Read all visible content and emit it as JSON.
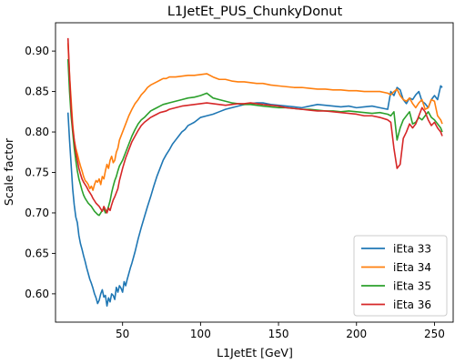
{
  "chart_data": {
    "type": "line",
    "title": "L1JetEt_PUS_ChunkyDonut",
    "xlabel": "L1JetEt [GeV]",
    "ylabel": "Scale factor",
    "xlim": [
      7,
      262
    ],
    "ylim": [
      0.565,
      0.935
    ],
    "xticks": [
      50,
      100,
      150,
      200,
      250
    ],
    "xtick_labels": [
      "50",
      "100",
      "150",
      "200",
      "250"
    ],
    "yticks": [
      0.6,
      0.65,
      0.7,
      0.75,
      0.8,
      0.85,
      0.9
    ],
    "ytick_labels": [
      "0.60",
      "0.65",
      "0.70",
      "0.75",
      "0.80",
      "0.85",
      "0.90"
    ],
    "grid": false,
    "legend_position": "lower-right",
    "series": [
      {
        "name": "iEta 33",
        "color": "#1f77b4",
        "x": [
          15,
          16,
          17,
          18,
          19,
          20,
          21,
          22,
          23,
          24,
          25,
          26,
          27,
          28,
          29,
          30,
          31,
          32,
          33,
          34,
          35,
          36,
          37,
          38,
          39,
          40,
          41,
          42,
          43,
          44,
          45,
          46,
          47,
          48,
          49,
          50,
          51,
          52,
          53,
          54,
          55,
          56,
          57,
          58,
          59,
          60,
          62,
          64,
          66,
          68,
          70,
          72,
          74,
          76,
          78,
          80,
          82,
          84,
          86,
          88,
          90,
          92,
          94,
          96,
          98,
          100,
          104,
          108,
          112,
          116,
          120,
          124,
          128,
          132,
          136,
          140,
          145,
          150,
          155,
          160,
          165,
          170,
          175,
          180,
          185,
          190,
          195,
          200,
          205,
          210,
          215,
          220,
          222,
          224,
          226,
          228,
          230,
          232,
          234,
          236,
          238,
          240,
          242,
          244,
          246,
          248,
          250,
          252,
          254,
          255
        ],
        "y": [
          0.824,
          0.79,
          0.76,
          0.73,
          0.71,
          0.695,
          0.688,
          0.672,
          0.662,
          0.655,
          0.647,
          0.64,
          0.632,
          0.625,
          0.618,
          0.613,
          0.607,
          0.6,
          0.595,
          0.588,
          0.592,
          0.6,
          0.605,
          0.596,
          0.598,
          0.585,
          0.595,
          0.59,
          0.6,
          0.598,
          0.593,
          0.608,
          0.602,
          0.61,
          0.607,
          0.602,
          0.615,
          0.61,
          0.618,
          0.625,
          0.632,
          0.638,
          0.645,
          0.652,
          0.66,
          0.668,
          0.682,
          0.695,
          0.708,
          0.72,
          0.733,
          0.745,
          0.755,
          0.765,
          0.772,
          0.778,
          0.785,
          0.79,
          0.795,
          0.8,
          0.803,
          0.808,
          0.81,
          0.812,
          0.815,
          0.818,
          0.82,
          0.822,
          0.825,
          0.828,
          0.83,
          0.832,
          0.834,
          0.835,
          0.836,
          0.836,
          0.834,
          0.833,
          0.832,
          0.831,
          0.83,
          0.832,
          0.834,
          0.833,
          0.832,
          0.831,
          0.832,
          0.83,
          0.831,
          0.832,
          0.83,
          0.828,
          0.85,
          0.845,
          0.855,
          0.852,
          0.84,
          0.835,
          0.842,
          0.84,
          0.846,
          0.85,
          0.838,
          0.835,
          0.83,
          0.84,
          0.845,
          0.84,
          0.857,
          0.855
        ]
      },
      {
        "name": "iEta 34",
        "color": "#ff7f0e",
        "x": [
          15,
          16,
          17,
          18,
          19,
          20,
          21,
          22,
          23,
          24,
          25,
          26,
          27,
          28,
          29,
          30,
          31,
          32,
          33,
          34,
          35,
          36,
          37,
          38,
          39,
          40,
          41,
          42,
          43,
          44,
          45,
          46,
          47,
          48,
          50,
          52,
          54,
          56,
          58,
          60,
          62,
          64,
          66,
          68,
          70,
          72,
          74,
          76,
          78,
          80,
          84,
          88,
          92,
          96,
          100,
          104,
          108,
          112,
          116,
          120,
          124,
          128,
          132,
          136,
          140,
          145,
          150,
          155,
          160,
          165,
          170,
          175,
          180,
          185,
          190,
          195,
          200,
          205,
          210,
          215,
          220,
          222,
          224,
          226,
          228,
          230,
          232,
          234,
          236,
          238,
          240,
          242,
          244,
          246,
          248,
          250,
          252,
          254,
          255
        ],
        "y": [
          0.91,
          0.87,
          0.84,
          0.81,
          0.79,
          0.78,
          0.773,
          0.765,
          0.758,
          0.752,
          0.745,
          0.74,
          0.738,
          0.735,
          0.73,
          0.733,
          0.728,
          0.735,
          0.74,
          0.738,
          0.742,
          0.735,
          0.745,
          0.742,
          0.752,
          0.76,
          0.755,
          0.765,
          0.77,
          0.762,
          0.765,
          0.775,
          0.78,
          0.79,
          0.8,
          0.81,
          0.82,
          0.828,
          0.835,
          0.84,
          0.846,
          0.85,
          0.855,
          0.858,
          0.86,
          0.862,
          0.864,
          0.866,
          0.866,
          0.868,
          0.868,
          0.869,
          0.87,
          0.87,
          0.871,
          0.872,
          0.868,
          0.865,
          0.865,
          0.863,
          0.862,
          0.862,
          0.861,
          0.86,
          0.86,
          0.858,
          0.857,
          0.856,
          0.855,
          0.855,
          0.854,
          0.853,
          0.853,
          0.852,
          0.852,
          0.851,
          0.851,
          0.85,
          0.85,
          0.85,
          0.848,
          0.846,
          0.85,
          0.853,
          0.845,
          0.84,
          0.838,
          0.842,
          0.835,
          0.83,
          0.836,
          0.84,
          0.828,
          0.83,
          0.84,
          0.838,
          0.82,
          0.815,
          0.81
        ]
      },
      {
        "name": "iEta 35",
        "color": "#2ca02c",
        "x": [
          15,
          16,
          17,
          18,
          19,
          20,
          21,
          22,
          23,
          24,
          25,
          26,
          27,
          28,
          29,
          30,
          31,
          32,
          33,
          34,
          35,
          36,
          37,
          38,
          39,
          40,
          41,
          42,
          43,
          44,
          45,
          46,
          47,
          48,
          50,
          52,
          54,
          56,
          58,
          60,
          62,
          64,
          66,
          68,
          70,
          72,
          74,
          76,
          78,
          80,
          84,
          88,
          92,
          96,
          100,
          104,
          108,
          112,
          116,
          120,
          124,
          128,
          132,
          136,
          140,
          145,
          150,
          155,
          160,
          165,
          170,
          175,
          180,
          185,
          190,
          195,
          200,
          205,
          210,
          215,
          220,
          222,
          224,
          226,
          228,
          230,
          232,
          234,
          236,
          238,
          240,
          242,
          244,
          246,
          248,
          250,
          252,
          254,
          255
        ],
        "y": [
          0.89,
          0.85,
          0.82,
          0.8,
          0.78,
          0.765,
          0.752,
          0.742,
          0.735,
          0.728,
          0.722,
          0.718,
          0.715,
          0.712,
          0.71,
          0.708,
          0.705,
          0.702,
          0.7,
          0.698,
          0.697,
          0.7,
          0.703,
          0.705,
          0.7,
          0.702,
          0.708,
          0.715,
          0.725,
          0.733,
          0.74,
          0.745,
          0.752,
          0.758,
          0.765,
          0.775,
          0.785,
          0.795,
          0.803,
          0.81,
          0.815,
          0.818,
          0.822,
          0.826,
          0.828,
          0.83,
          0.832,
          0.834,
          0.835,
          0.836,
          0.838,
          0.84,
          0.842,
          0.843,
          0.845,
          0.848,
          0.842,
          0.84,
          0.838,
          0.836,
          0.835,
          0.834,
          0.834,
          0.833,
          0.832,
          0.831,
          0.83,
          0.83,
          0.829,
          0.828,
          0.828,
          0.827,
          0.826,
          0.826,
          0.825,
          0.826,
          0.825,
          0.824,
          0.823,
          0.824,
          0.822,
          0.82,
          0.825,
          0.79,
          0.805,
          0.815,
          0.82,
          0.825,
          0.81,
          0.812,
          0.818,
          0.815,
          0.82,
          0.825,
          0.818,
          0.815,
          0.81,
          0.805,
          0.8
        ]
      },
      {
        "name": "iEta 36",
        "color": "#d62728",
        "x": [
          15,
          16,
          17,
          18,
          19,
          20,
          21,
          22,
          23,
          24,
          25,
          26,
          27,
          28,
          29,
          30,
          31,
          32,
          33,
          34,
          35,
          36,
          37,
          38,
          39,
          40,
          41,
          42,
          43,
          44,
          45,
          46,
          47,
          48,
          50,
          52,
          54,
          56,
          58,
          60,
          62,
          64,
          66,
          68,
          70,
          72,
          74,
          76,
          78,
          80,
          84,
          88,
          92,
          96,
          100,
          104,
          108,
          112,
          116,
          120,
          124,
          128,
          132,
          136,
          140,
          145,
          150,
          155,
          160,
          165,
          170,
          175,
          180,
          185,
          190,
          195,
          200,
          205,
          210,
          215,
          220,
          222,
          224,
          226,
          228,
          230,
          232,
          234,
          236,
          238,
          240,
          242,
          244,
          246,
          248,
          250,
          252,
          254,
          255
        ],
        "y": [
          0.916,
          0.87,
          0.83,
          0.805,
          0.79,
          0.775,
          0.765,
          0.755,
          0.748,
          0.742,
          0.738,
          0.735,
          0.732,
          0.728,
          0.725,
          0.722,
          0.718,
          0.715,
          0.712,
          0.71,
          0.708,
          0.705,
          0.702,
          0.708,
          0.704,
          0.7,
          0.706,
          0.703,
          0.71,
          0.716,
          0.72,
          0.725,
          0.73,
          0.74,
          0.755,
          0.768,
          0.778,
          0.788,
          0.795,
          0.802,
          0.808,
          0.812,
          0.815,
          0.818,
          0.82,
          0.822,
          0.824,
          0.825,
          0.826,
          0.828,
          0.83,
          0.832,
          0.833,
          0.834,
          0.835,
          0.836,
          0.835,
          0.834,
          0.833,
          0.834,
          0.835,
          0.835,
          0.836,
          0.835,
          0.834,
          0.833,
          0.832,
          0.83,
          0.829,
          0.828,
          0.827,
          0.826,
          0.826,
          0.825,
          0.824,
          0.823,
          0.822,
          0.82,
          0.82,
          0.818,
          0.815,
          0.812,
          0.78,
          0.755,
          0.76,
          0.792,
          0.8,
          0.81,
          0.805,
          0.81,
          0.82,
          0.83,
          0.825,
          0.815,
          0.808,
          0.812,
          0.805,
          0.8,
          0.795
        ]
      }
    ]
  }
}
